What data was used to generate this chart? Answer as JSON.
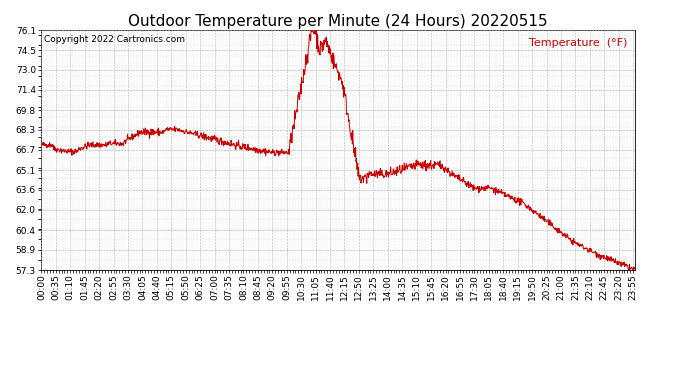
{
  "title": "Outdoor Temperature per Minute (24 Hours) 20220515",
  "copyright_text": "Copyright 2022 Cartronics.com",
  "legend_label": "Temperature  (°F)",
  "line_color": "#cc0000",
  "background_color": "#ffffff",
  "grid_color": "#aaaaaa",
  "yticks": [
    57.3,
    58.9,
    60.4,
    62.0,
    63.6,
    65.1,
    66.7,
    68.3,
    69.8,
    71.4,
    73.0,
    74.5,
    76.1
  ],
  "ymin": 57.3,
  "ymax": 76.1,
  "xtick_labels": [
    "00:00",
    "00:35",
    "01:10",
    "01:45",
    "02:20",
    "02:55",
    "03:30",
    "04:05",
    "04:40",
    "05:15",
    "05:50",
    "06:25",
    "07:00",
    "07:35",
    "08:10",
    "08:45",
    "09:20",
    "09:55",
    "10:30",
    "11:05",
    "11:40",
    "12:15",
    "12:50",
    "13:25",
    "14:00",
    "14:35",
    "15:10",
    "15:45",
    "16:20",
    "16:55",
    "17:30",
    "18:05",
    "18:40",
    "19:15",
    "19:50",
    "20:25",
    "21:00",
    "21:35",
    "22:10",
    "22:45",
    "23:20",
    "23:55"
  ],
  "title_fontsize": 11,
  "axis_fontsize": 6.5,
  "copyright_fontsize": 6.5,
  "legend_fontsize": 8,
  "line_color_legend": "#cc0000",
  "tick_label_color": "#000000",
  "title_color": "#000000",
  "figsize": [
    6.9,
    3.75
  ],
  "dpi": 100
}
